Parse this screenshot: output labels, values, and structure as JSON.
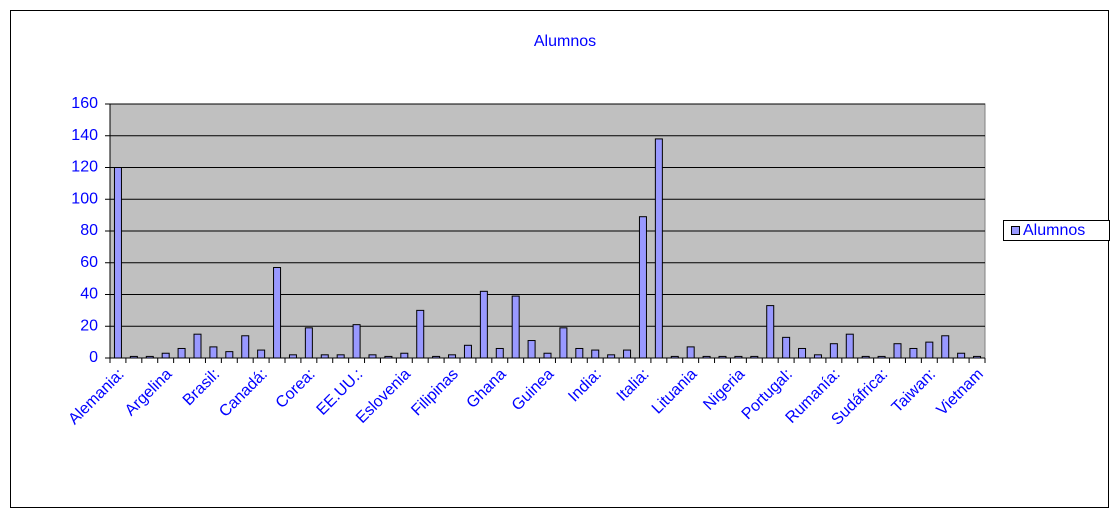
{
  "chart_data": {
    "type": "bar",
    "title": "Alumnos",
    "categories": [
      "Alemania:",
      null,
      null,
      "Argelina",
      null,
      null,
      "Brasil:",
      null,
      null,
      "Canadá:",
      null,
      null,
      "Corea:",
      null,
      null,
      "EE.UU.:",
      null,
      null,
      "Eslovenia",
      null,
      null,
      "Filipinas",
      null,
      null,
      "Ghana",
      null,
      null,
      "Guinea",
      null,
      null,
      "India:",
      null,
      null,
      "Italia:",
      null,
      null,
      "Lituania",
      null,
      null,
      "Nigeria",
      null,
      null,
      "Portugal:",
      null,
      null,
      "Rumanía:",
      null,
      null,
      "Sudáfrica:",
      null,
      null,
      "Taiwan:",
      null,
      null,
      "Vietnam"
    ],
    "series": [
      {
        "name": "Alumnos",
        "color": "#9999ff",
        "values": [
          120,
          1,
          1,
          3,
          6,
          15,
          7,
          4,
          14,
          5,
          57,
          2,
          19,
          2,
          2,
          21,
          2,
          1,
          3,
          30,
          1,
          2,
          8,
          42,
          6,
          39,
          11,
          3,
          19,
          6,
          5,
          2,
          5,
          89,
          138,
          1,
          7,
          1,
          1,
          1,
          1,
          33,
          13,
          6,
          2,
          9,
          15,
          1,
          1,
          9,
          6,
          10,
          14,
          3,
          1
        ]
      }
    ],
    "ylim": [
      0,
      160
    ],
    "yticks": [
      0,
      20,
      40,
      60,
      80,
      100,
      120,
      140,
      160
    ],
    "grid": true,
    "legend": "right"
  }
}
